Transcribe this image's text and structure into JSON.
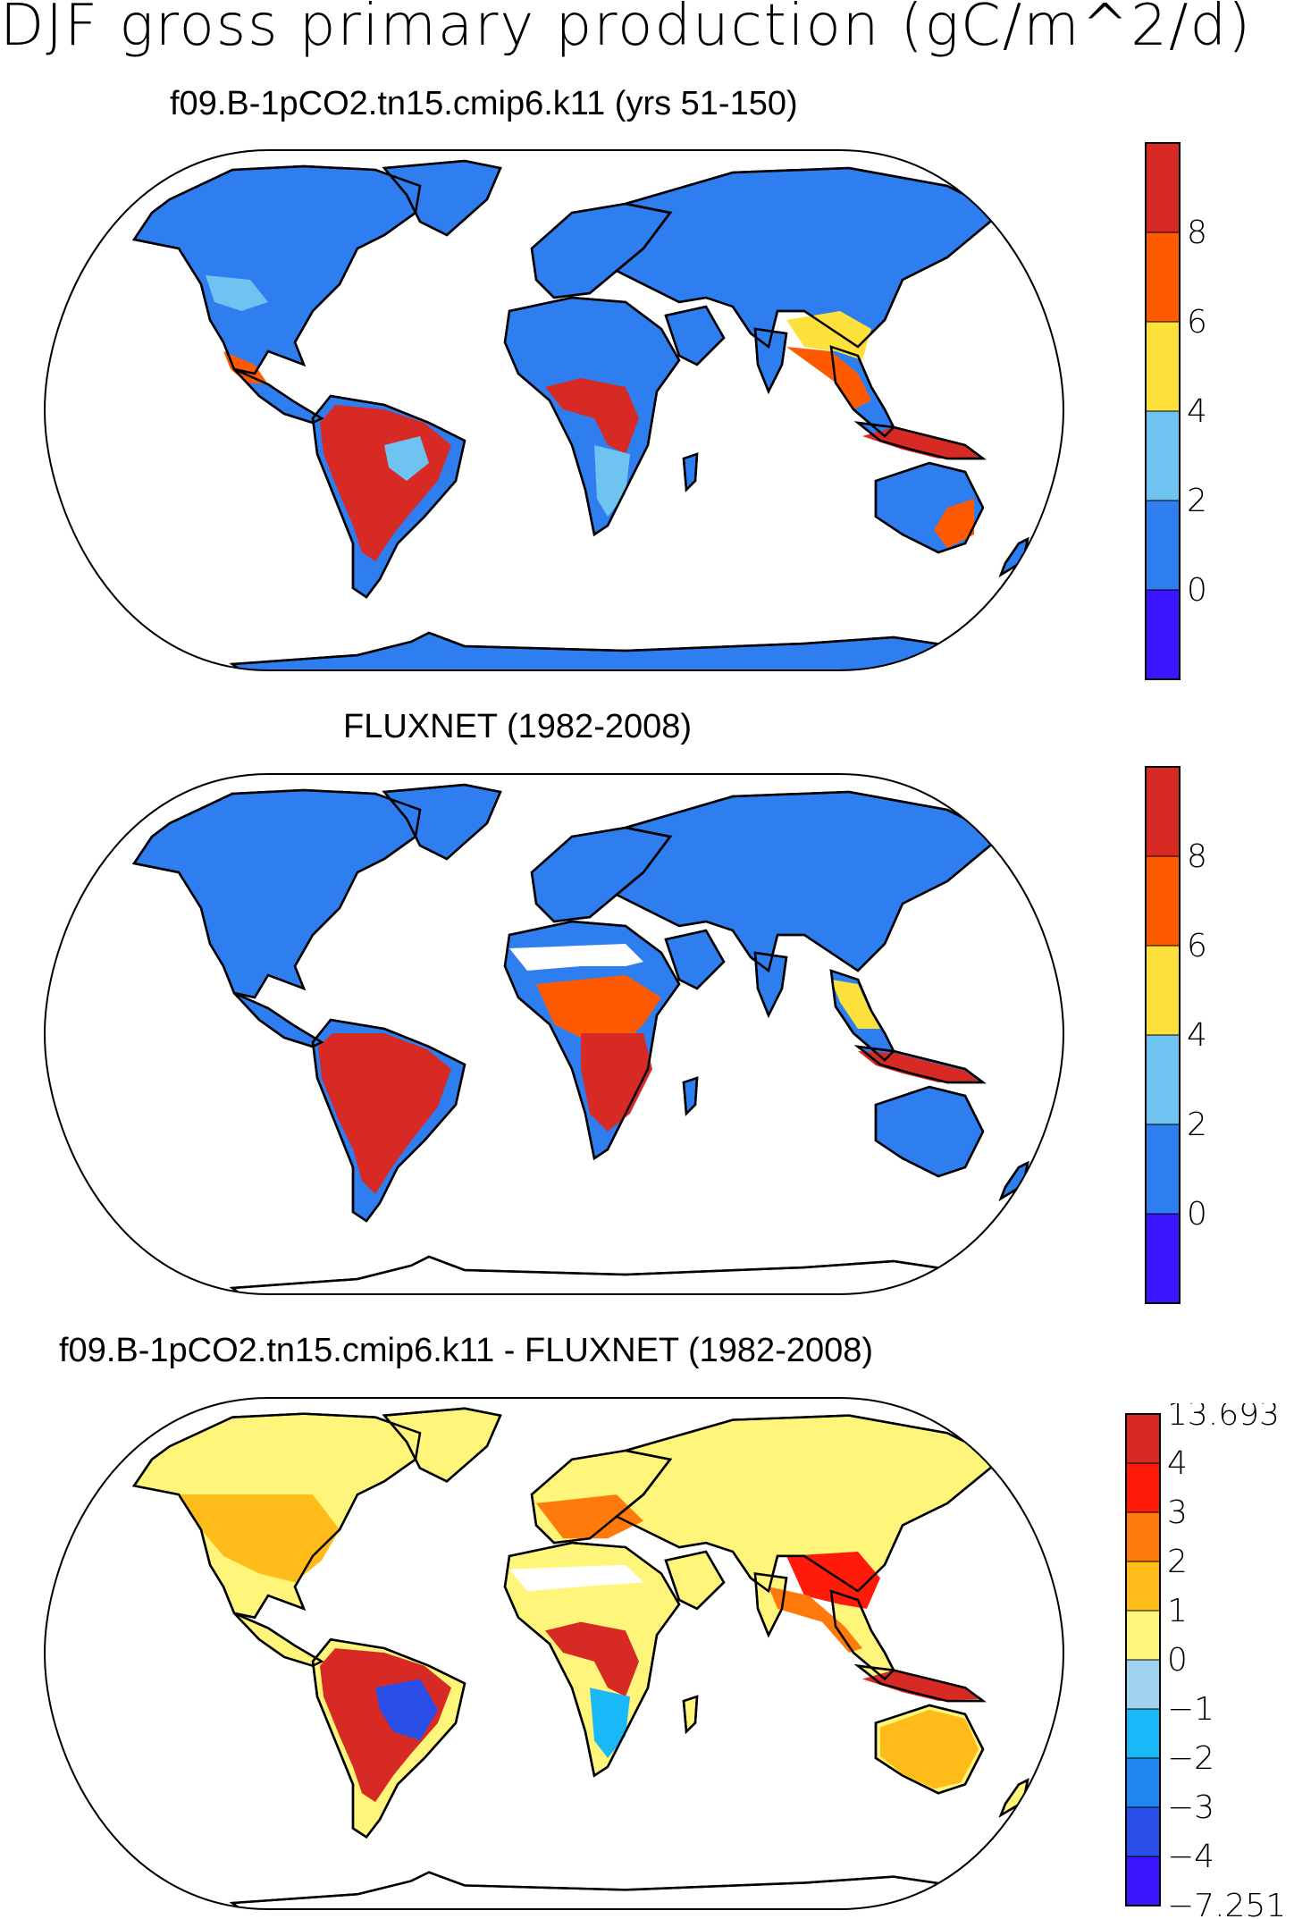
{
  "figure": {
    "title": "DJF gross primary production (gC/m^2/d)"
  },
  "panels": [
    {
      "title": "f09.B-1pCO2.tn15.cmip6.k11 (yrs 51-150)",
      "colorbar": {
        "colors": [
          "#3d14ff",
          "#2f7ef0",
          "#6ec3f0",
          "#fde03a",
          "#ff5a00",
          "#d82a25"
        ],
        "labels": [
          "0",
          "2",
          "4",
          "6",
          "8"
        ]
      }
    },
    {
      "title": "FLUXNET (1982-2008)",
      "colorbar": {
        "colors": [
          "#3d14ff",
          "#2f7ef0",
          "#6ec3f0",
          "#fde03a",
          "#ff5a00",
          "#d82a25"
        ],
        "labels": [
          "0",
          "2",
          "4",
          "6",
          "8"
        ]
      }
    },
    {
      "title": "f09.B-1pCO2.tn15.cmip6.k11 - FLUXNET (1982-2008)",
      "colorbar": {
        "colors": [
          "#3d14ff",
          "#2a4fe8",
          "#1f86f2",
          "#19b8f8",
          "#9fd3f0",
          "#fff57a",
          "#ffbb1a",
          "#ff7a0a",
          "#ff1a0a",
          "#d82a25"
        ],
        "labels": [
          "-7.251",
          "-4",
          "-3",
          "-2",
          "-1",
          "0",
          "1",
          "2",
          "3",
          "4",
          "13.693"
        ]
      }
    }
  ],
  "colors": {
    "ocean": "#ffffff",
    "land_base_panel1": "#2f7ef0",
    "land_base_panel3": "#fff57a",
    "tropics_high": "#d82a25",
    "coastline": "#000000"
  }
}
